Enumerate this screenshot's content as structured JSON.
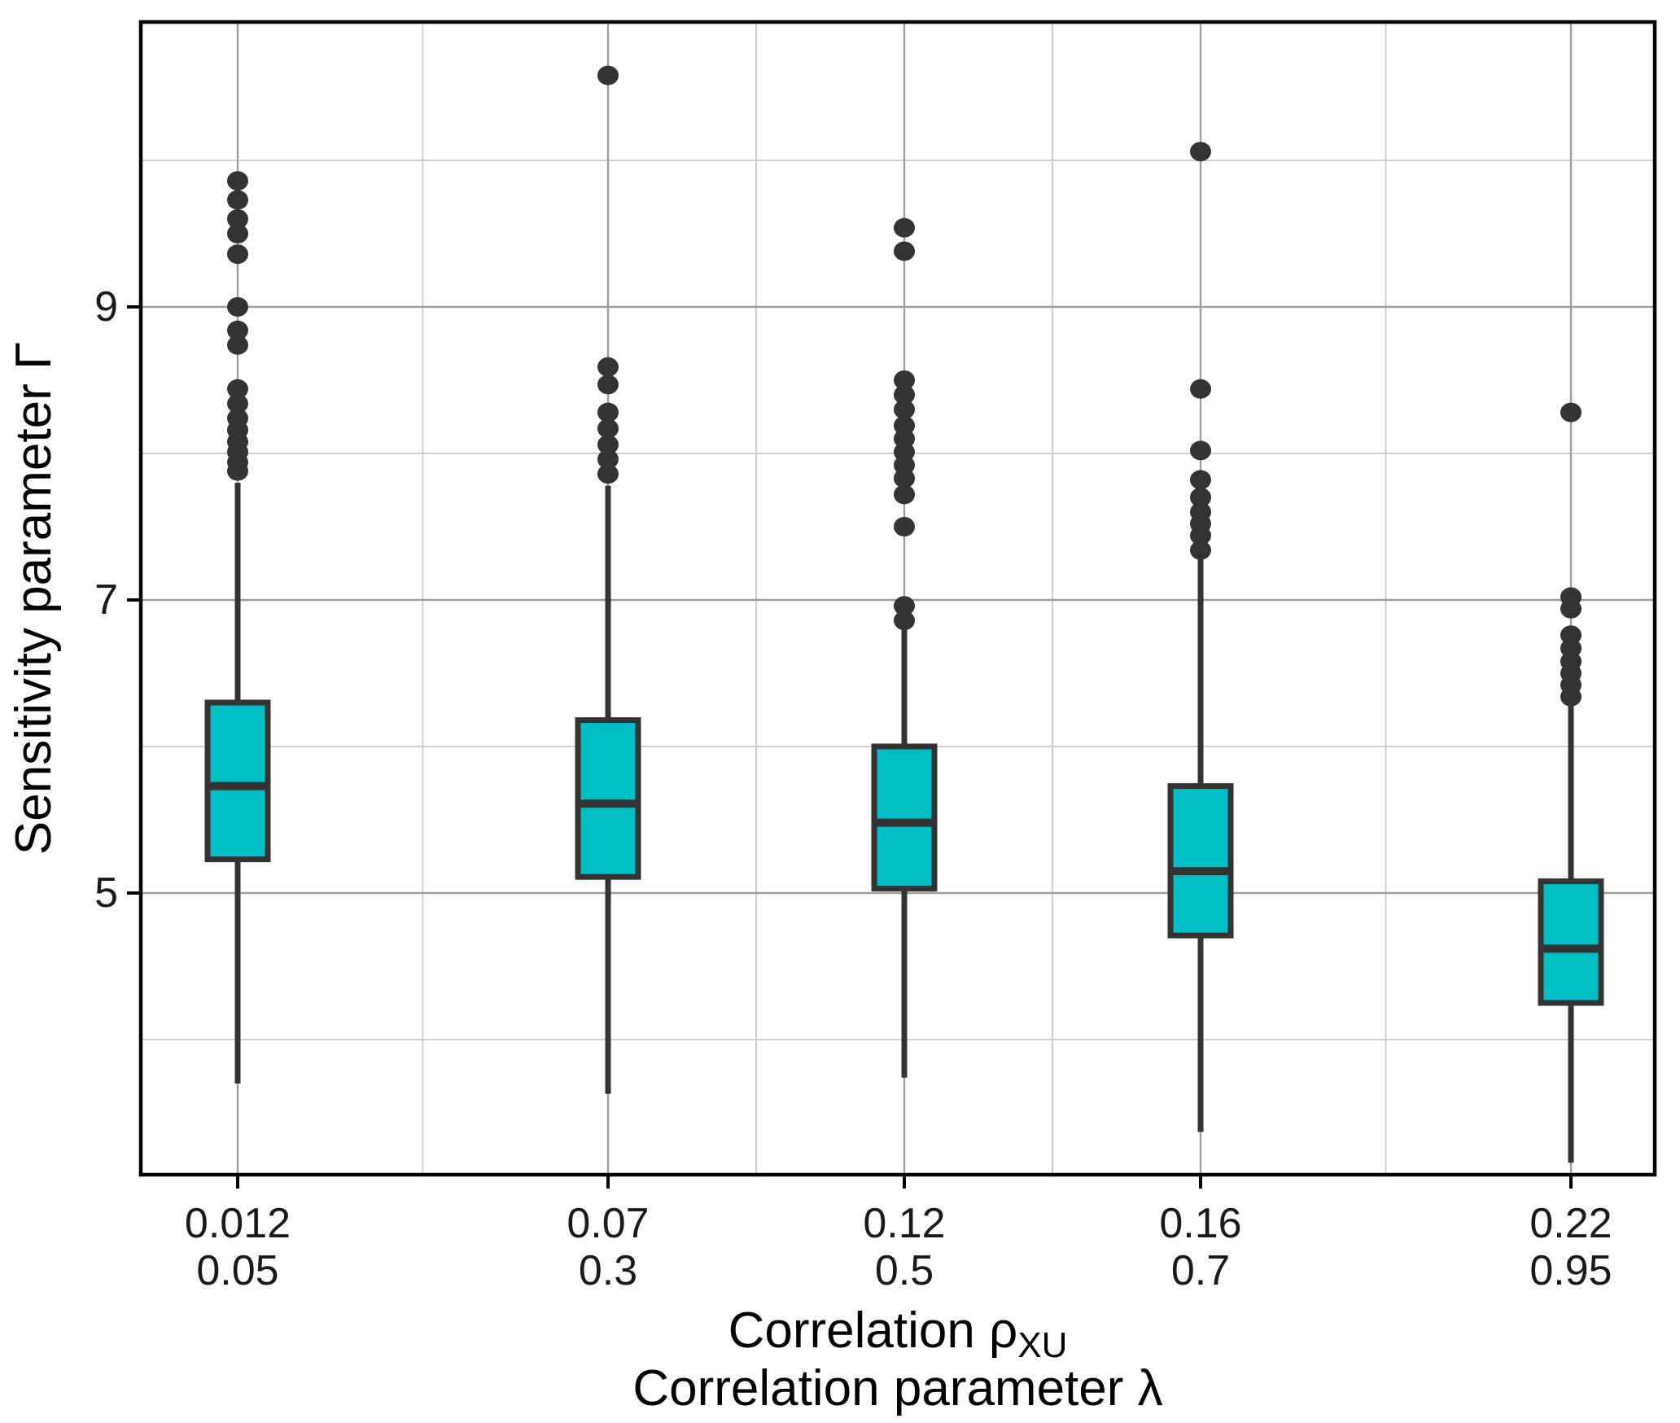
{
  "figure": {
    "y_axis_title": "Sensitivity parameter Γ",
    "x_axis_title_line1_main": "Correlation ρ",
    "x_axis_title_line1_sub": "XU",
    "x_axis_title_line2": "Correlation parameter λ"
  },
  "chart_data": {
    "type": "boxplot",
    "title": "",
    "ylabel": "Sensitivity parameter Γ",
    "xlabel": "Correlation ρ_XU / Correlation parameter λ",
    "legend": "none",
    "grid": true,
    "y_ticks": [
      5,
      7,
      9
    ],
    "y_minor_ticks": [
      4,
      6,
      8,
      10
    ],
    "ylim": [
      3.05,
      10.95
    ],
    "x_positions_lambda": [
      0.05,
      0.3,
      0.5,
      0.7,
      0.95
    ],
    "colors": {
      "box_fill": "#00BFC4",
      "box_line": "#333333",
      "outlier": "#333333",
      "grid_major": "#9e9e9e",
      "grid_minor": "#c9c9c9",
      "panel_border": "#000000",
      "tick_text": "#1a1a1a",
      "title_text": "#000000"
    },
    "groups": [
      {
        "rho_label": "0.012",
        "lambda_label": "0.05",
        "lambda": 0.05,
        "whisker_low": 3.7,
        "q1": 5.23,
        "median": 5.73,
        "q3": 6.3,
        "whisker_high": 7.8,
        "outliers": [
          7.88,
          7.94,
          8.01,
          8.08,
          8.16,
          8.24,
          8.34,
          8.44,
          8.74,
          8.84,
          9.0,
          9.36,
          9.5,
          9.6,
          9.73,
          9.86
        ]
      },
      {
        "rho_label": "0.07",
        "lambda_label": "0.3",
        "lambda": 0.3,
        "whisker_low": 3.63,
        "q1": 5.11,
        "median": 5.61,
        "q3": 6.18,
        "whisker_high": 7.78,
        "outliers": [
          7.86,
          7.96,
          8.06,
          8.17,
          8.28,
          8.47,
          8.59,
          10.58
        ]
      },
      {
        "rho_label": "0.12",
        "lambda_label": "0.5",
        "lambda": 0.5,
        "whisker_low": 3.74,
        "q1": 5.03,
        "median": 5.48,
        "q3": 6.0,
        "whisker_high": 6.8,
        "outliers": [
          6.86,
          6.96,
          7.5,
          7.72,
          7.83,
          7.92,
          8.01,
          8.1,
          8.19,
          8.3,
          8.4,
          8.5,
          9.38,
          9.54
        ]
      },
      {
        "rho_label": "0.16",
        "lambda_label": "0.7",
        "lambda": 0.7,
        "whisker_low": 3.37,
        "q1": 4.71,
        "median": 5.15,
        "q3": 5.73,
        "whisker_high": 7.28,
        "outliers": [
          7.34,
          7.44,
          7.52,
          7.6,
          7.7,
          7.82,
          8.02,
          8.44,
          10.06
        ]
      },
      {
        "rho_label": "0.22",
        "lambda_label": "0.95",
        "lambda": 0.95,
        "whisker_low": 3.16,
        "q1": 4.25,
        "median": 4.62,
        "q3": 5.08,
        "whisker_high": 6.28,
        "outliers": [
          6.34,
          6.42,
          6.5,
          6.58,
          6.67,
          6.76,
          6.94,
          7.02,
          8.28
        ]
      }
    ]
  }
}
